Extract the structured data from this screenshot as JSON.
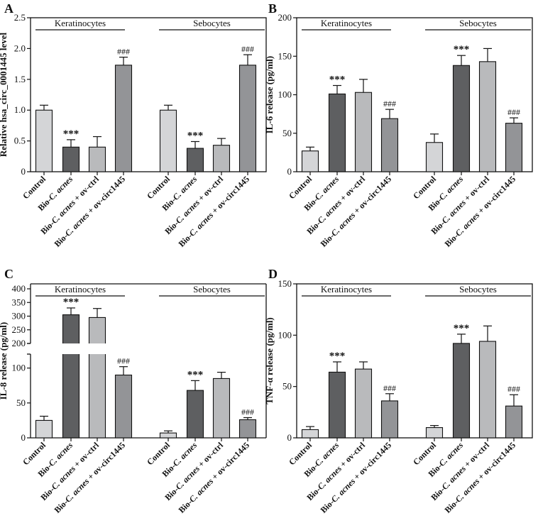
{
  "colors": {
    "control": "#d4d5d7",
    "bio": "#5e5f61",
    "ovctrl": "#b9babc",
    "ovcirc": "#939497",
    "axis": "#111111"
  },
  "chart_data": [
    {
      "panel": "A",
      "type": "bar",
      "ylabel": "Relative hsa_circ_0001445 level",
      "ylim": [
        0,
        2.5
      ],
      "yticks": [
        0,
        0.5,
        1.0,
        1.5,
        2.0,
        2.5
      ],
      "ytick_labels": [
        "0",
        "0.5",
        "1.0",
        "1.5",
        "2.0",
        "2.5"
      ],
      "groups": [
        "Keratinocytes",
        "Sebocytes"
      ],
      "categories": [
        "Control",
        "Bio-C. acnes",
        "Bio-C. acnes + ov-ctrl",
        "Bio-C. acnes + ov-circ1445"
      ],
      "values": [
        [
          1.0,
          0.4,
          0.4,
          1.73
        ],
        [
          1.0,
          0.38,
          0.43,
          1.73
        ]
      ],
      "errors": [
        [
          0.08,
          0.12,
          0.17,
          0.13
        ],
        [
          0.08,
          0.11,
          0.11,
          0.17
        ]
      ],
      "annotations": [
        [
          "",
          "***",
          "",
          "###"
        ],
        [
          "",
          "***",
          "",
          "###"
        ]
      ]
    },
    {
      "panel": "B",
      "type": "bar",
      "ylabel": "IL-6 release (pg/ml)",
      "ylim": [
        0,
        200
      ],
      "yticks": [
        0,
        50,
        100,
        150,
        200
      ],
      "ytick_labels": [
        "0",
        "50",
        "100",
        "150",
        "200"
      ],
      "groups": [
        "Keratinocytes",
        "Sebocytes"
      ],
      "categories": [
        "Control",
        "Bio-C. acnes",
        "Bio-C. acnes + ov-ctrl",
        "Bio-C. acnes + ov-circ1445"
      ],
      "values": [
        [
          27,
          101,
          103,
          69
        ],
        [
          38,
          138,
          143,
          63
        ]
      ],
      "errors": [
        [
          5,
          11,
          17,
          12
        ],
        [
          11,
          13,
          17,
          7
        ]
      ],
      "annotations": [
        [
          "",
          "***",
          "",
          "###"
        ],
        [
          "",
          "***",
          "",
          "###"
        ]
      ]
    },
    {
      "panel": "C",
      "type": "bar",
      "ylabel": "IL-8 release (pg/ml)",
      "ylim": [
        0,
        400
      ],
      "axis_break": [
        120,
        200
      ],
      "yticks": [
        0,
        50,
        100,
        200,
        250,
        300,
        350,
        400
      ],
      "ytick_labels": [
        "0",
        "50",
        "100",
        "200",
        "250",
        "300",
        "350",
        "400"
      ],
      "groups": [
        "Keratinocytes",
        "Sebocytes"
      ],
      "categories": [
        "Control",
        "Bio-C. acnes",
        "Bio-C. acnes + ov-ctrl",
        "Bio-C. acnes + ov-circ1445"
      ],
      "values": [
        [
          25,
          305,
          295,
          90
        ],
        [
          7,
          68,
          85,
          26
        ]
      ],
      "errors": [
        [
          6,
          25,
          33,
          12
        ],
        [
          3,
          14,
          9,
          3
        ]
      ],
      "annotations": [
        [
          "",
          "***",
          "",
          "###"
        ],
        [
          "",
          "***",
          "",
          "###"
        ]
      ]
    },
    {
      "panel": "D",
      "type": "bar",
      "ylabel": "TNF-α release (pg/ml)",
      "ylim": [
        0,
        150
      ],
      "yticks": [
        0,
        50,
        100,
        150
      ],
      "ytick_labels": [
        "0",
        "50",
        "100",
        "150"
      ],
      "groups": [
        "Keratinocytes",
        "Sebocytes"
      ],
      "categories": [
        "Control",
        "Bio-C. acnes",
        "Bio-C. acnes + ov-ctrl",
        "Bio-C. acnes + ov-circ1445"
      ],
      "values": [
        [
          8,
          64,
          67,
          36
        ],
        [
          10,
          92,
          94,
          31
        ]
      ],
      "errors": [
        [
          3,
          10,
          7,
          7
        ],
        [
          2,
          9,
          15,
          11
        ]
      ],
      "annotations": [
        [
          "",
          "***",
          "",
          "###"
        ],
        [
          "",
          "***",
          "",
          "###"
        ]
      ]
    }
  ]
}
